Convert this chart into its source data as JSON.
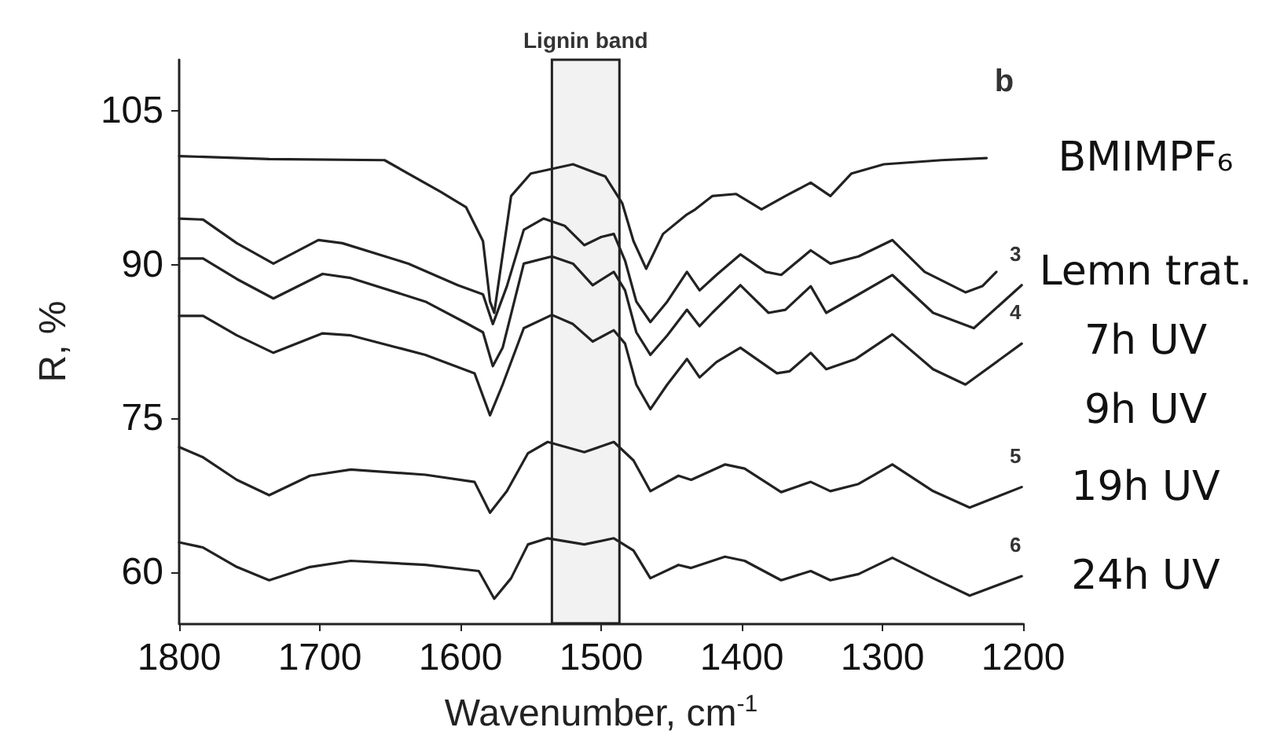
{
  "chart_data": {
    "type": "line",
    "xlabel": "Wavenumber, cm$^{-1}$",
    "ylabel": "R, %",
    "xlim": [
      1800,
      1200
    ],
    "xticks": [
      1800,
      1700,
      1600,
      1500,
      1400,
      1300,
      1200
    ],
    "ylim": [
      55,
      110
    ],
    "yticks": [
      60,
      75,
      90,
      105
    ],
    "grid": false,
    "legend": false,
    "marker": "none",
    "line_style": "solid",
    "bands": [
      {
        "axis": "x",
        "from": 1535,
        "to": 1487,
        "label": "Lignin band"
      }
    ],
    "annotations": [
      "b",
      "3",
      "4",
      "5",
      "6"
    ],
    "series": [
      {
        "name": "BMIMPF₆",
        "color": "#222222",
        "x": [
          1800,
          1736,
          1654,
          1614,
          1596,
          1584,
          1579,
          1576,
          1564,
          1550,
          1520,
          1497,
          1485,
          1477,
          1468,
          1456,
          1439,
          1433,
          1421,
          1404,
          1386,
          1369,
          1351,
          1337,
          1322,
          1299,
          1258,
          1226
        ],
        "values": [
          100.6,
          100.3,
          100.2,
          97.1,
          95.6,
          92.3,
          86.4,
          85.3,
          96.7,
          98.9,
          99.8,
          98.6,
          96,
          92.3,
          89.6,
          93,
          94.9,
          95.4,
          96.7,
          96.9,
          95.4,
          96.7,
          98,
          96.7,
          98.9,
          99.8,
          100.2,
          100.4
        ]
      },
      {
        "name": "Lemn trat.",
        "color": "#222222",
        "x": [
          1800,
          1783,
          1759,
          1733,
          1701,
          1684,
          1637,
          1602,
          1584,
          1577,
          1567,
          1555,
          1541,
          1526,
          1512,
          1500,
          1491,
          1483,
          1475,
          1465,
          1453,
          1439,
          1430,
          1418,
          1401,
          1383,
          1372,
          1351,
          1337,
          1317,
          1293,
          1270,
          1241,
          1229,
          1219
        ],
        "values": [
          94.5,
          94.4,
          92.1,
          90.1,
          92.4,
          92.1,
          90.1,
          88,
          87.1,
          84.2,
          87.9,
          93.4,
          94.5,
          93.8,
          91.9,
          92.7,
          93,
          90.4,
          86.4,
          84.4,
          86.4,
          89.3,
          87.5,
          89,
          91,
          89.3,
          89,
          91.4,
          90.1,
          90.8,
          92.4,
          89.3,
          87.3,
          87.9,
          89.3
        ]
      },
      {
        "name": "7h UV",
        "color": "#222222",
        "x": [
          1800,
          1783,
          1759,
          1733,
          1698,
          1678,
          1625,
          1596,
          1584,
          1577,
          1570,
          1555,
          1535,
          1520,
          1506,
          1491,
          1483,
          1475,
          1465,
          1453,
          1439,
          1430,
          1421,
          1401,
          1381,
          1369,
          1351,
          1340,
          1322,
          1293,
          1264,
          1235,
          1201
        ],
        "values": [
          90.6,
          90.6,
          88.6,
          86.7,
          89.1,
          88.7,
          86.4,
          84.3,
          83.4,
          80.1,
          81.9,
          90.1,
          90.8,
          90.1,
          88,
          89.3,
          87.5,
          83.4,
          81.2,
          83.1,
          85.6,
          84,
          85.3,
          88,
          85.3,
          85.6,
          87.9,
          85.3,
          86.7,
          89,
          85.3,
          83.8,
          88
        ]
      },
      {
        "name": "9h UV",
        "color": "#222222",
        "x": [
          1800,
          1783,
          1759,
          1733,
          1698,
          1678,
          1625,
          1590,
          1579,
          1570,
          1555,
          1535,
          1520,
          1506,
          1491,
          1483,
          1475,
          1465,
          1453,
          1439,
          1430,
          1418,
          1401,
          1375,
          1366,
          1351,
          1340,
          1319,
          1293,
          1264,
          1241,
          1201
        ],
        "values": [
          85,
          85,
          83.1,
          81.4,
          83.3,
          83.1,
          81.2,
          79.4,
          75.3,
          78.3,
          83.8,
          85.1,
          84.2,
          82.5,
          83.6,
          82.3,
          78.3,
          75.9,
          78.3,
          80.8,
          79,
          80.5,
          81.9,
          79.4,
          79.6,
          81.4,
          79.8,
          80.8,
          83.2,
          79.8,
          78.3,
          82.3
        ]
      },
      {
        "name": "19h UV",
        "color": "#222222",
        "x": [
          1800,
          1783,
          1759,
          1736,
          1707,
          1678,
          1625,
          1590,
          1579,
          1567,
          1552,
          1538,
          1512,
          1491,
          1477,
          1465,
          1445,
          1436,
          1412,
          1398,
          1372,
          1351,
          1337,
          1317,
          1293,
          1264,
          1238,
          1201
        ],
        "values": [
          72.2,
          71.2,
          69,
          67.5,
          69.4,
          70,
          69.5,
          68.8,
          65.8,
          67.9,
          71.6,
          72.7,
          71.7,
          72.7,
          70.9,
          67.9,
          69.4,
          69,
          70.5,
          70.1,
          67.8,
          68.8,
          67.9,
          68.6,
          70.5,
          67.9,
          66.3,
          68.3
        ]
      },
      {
        "name": "24h UV",
        "color": "#222222",
        "x": [
          1800,
          1783,
          1759,
          1736,
          1707,
          1678,
          1625,
          1587,
          1576,
          1564,
          1552,
          1538,
          1512,
          1491,
          1477,
          1465,
          1445,
          1436,
          1412,
          1398,
          1372,
          1351,
          1337,
          1317,
          1293,
          1264,
          1238,
          1201
        ],
        "values": [
          62.9,
          62.4,
          60.5,
          59.2,
          60.5,
          61.1,
          60.7,
          60.1,
          57.4,
          59.4,
          62.7,
          63.3,
          62.7,
          63.3,
          62.1,
          59.4,
          60.7,
          60.4,
          61.5,
          61.1,
          59.2,
          60.1,
          59.2,
          59.8,
          61.4,
          59.4,
          57.7,
          59.6
        ]
      }
    ]
  }
}
